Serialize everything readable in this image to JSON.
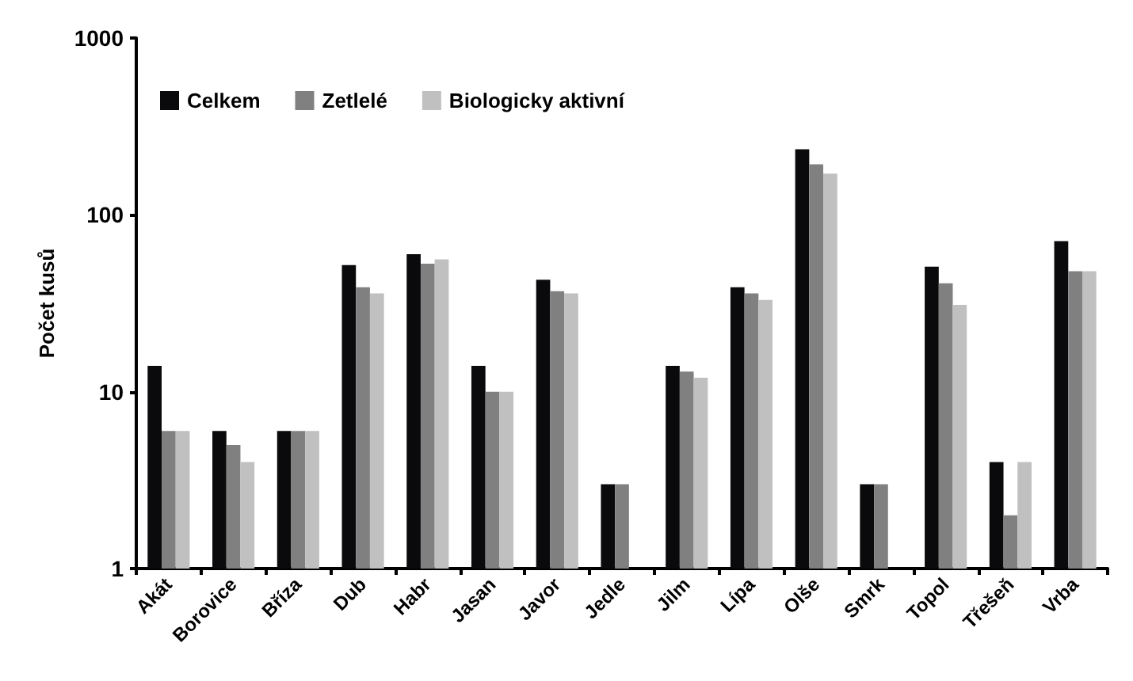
{
  "chart_data": {
    "type": "bar",
    "ylabel": "Počet kusů",
    "categories": [
      "Akát",
      "Borovice",
      "Bříza",
      "Dub",
      "Habr",
      "Jasan",
      "Javor",
      "Jedle",
      "Jilm",
      "Lípa",
      "Olše",
      "Smrk",
      "Topol",
      "Třešeň",
      "Vrba"
    ],
    "series": [
      {
        "name": "Celkem",
        "color": "#0a0a0c",
        "values": [
          14,
          6,
          6,
          52,
          60,
          14,
          43,
          3,
          14,
          39,
          235,
          3,
          51,
          4,
          71
        ]
      },
      {
        "name": "Zetlelé",
        "color": "#808080",
        "values": [
          6,
          5,
          6,
          39,
          53,
          10,
          37,
          3,
          13,
          36,
          193,
          3,
          41,
          2,
          48
        ]
      },
      {
        "name": "Biologicky aktivní",
        "color": "#c0c0c0",
        "values": [
          6,
          4,
          6,
          36,
          56,
          10,
          36,
          null,
          12,
          33,
          171,
          null,
          31,
          4,
          48
        ]
      }
    ],
    "log": true,
    "ylim": [
      1,
      1000
    ],
    "yticks": [
      1,
      10,
      100,
      1000
    ],
    "grid": false,
    "legend": "top left"
  }
}
